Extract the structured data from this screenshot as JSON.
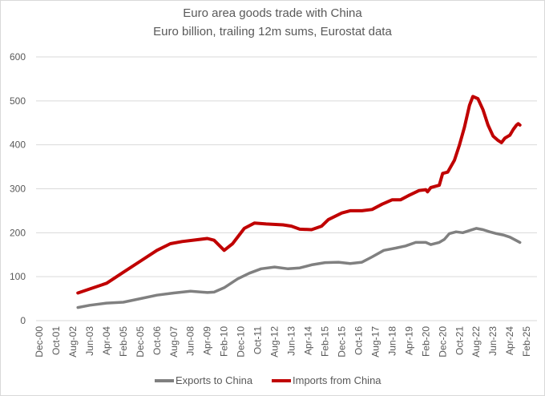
{
  "chart_data": {
    "type": "line",
    "title": "Euro area goods trade with China",
    "subtitle": "Euro billion, trailing 12m sums, Eurostat data",
    "xlabel": "",
    "ylabel": "",
    "ylim": [
      0,
      600
    ],
    "yticks": [
      "0",
      "100",
      "200",
      "300",
      "400",
      "500",
      "600"
    ],
    "x_start": "Dec-00",
    "x_months_total": 292,
    "xtick_labels": [
      "Dec-00",
      "Oct-01",
      "Aug-02",
      "Jun-03",
      "Apr-04",
      "Feb-05",
      "Dec-05",
      "Oct-06",
      "Aug-07",
      "Jun-08",
      "Apr-09",
      "Feb-10",
      "Dec-10",
      "Oct-11",
      "Aug-12",
      "Jun-13",
      "Apr-14",
      "Feb-15",
      "Dec-15",
      "Oct-16",
      "Aug-17",
      "Jun-18",
      "Apr-19",
      "Feb-20",
      "Dec-20",
      "Oct-21",
      "Aug-22",
      "Jun-23",
      "Apr-24",
      "Feb-25"
    ],
    "grid": true,
    "legend_position": "bottom",
    "series": [
      {
        "name": "Exports to China",
        "color": "#808080",
        "points_month_index": [
          23,
          30,
          40,
          50,
          60,
          70,
          80,
          90,
          100,
          104,
          110,
          118,
          125,
          132,
          140,
          148,
          155,
          162,
          170,
          178,
          185,
          192,
          198,
          205,
          212,
          218,
          224,
          230,
          233,
          238,
          241,
          244,
          248,
          252,
          256,
          260,
          264,
          268,
          272,
          276,
          280,
          284,
          286
        ],
        "values": [
          30,
          35,
          40,
          42,
          50,
          58,
          63,
          67,
          64,
          65,
          75,
          95,
          108,
          118,
          122,
          118,
          120,
          127,
          132,
          133,
          130,
          133,
          145,
          160,
          165,
          170,
          178,
          178,
          173,
          178,
          185,
          198,
          202,
          200,
          205,
          210,
          207,
          202,
          198,
          195,
          190,
          182,
          178
        ]
      },
      {
        "name": "Imports from China",
        "color": "#c00000",
        "points_month_index": [
          23,
          30,
          40,
          50,
          60,
          70,
          78,
          85,
          100,
          104,
          110,
          115,
          122,
          128,
          135,
          145,
          150,
          155,
          162,
          168,
          172,
          180,
          185,
          192,
          198,
          204,
          210,
          215,
          220,
          226,
          230,
          231,
          233,
          238,
          240,
          243,
          247,
          250,
          253,
          256,
          258,
          261,
          264,
          267,
          270,
          273,
          275,
          277,
          280,
          282,
          284,
          285,
          286
        ],
        "values": [
          63,
          72,
          85,
          110,
          135,
          160,
          175,
          180,
          187,
          183,
          160,
          175,
          210,
          222,
          220,
          218,
          215,
          208,
          207,
          215,
          230,
          245,
          250,
          250,
          253,
          265,
          275,
          275,
          285,
          296,
          298,
          293,
          303,
          308,
          335,
          338,
          365,
          400,
          440,
          490,
          510,
          505,
          480,
          445,
          420,
          410,
          405,
          415,
          422,
          435,
          445,
          448,
          445
        ]
      }
    ]
  }
}
